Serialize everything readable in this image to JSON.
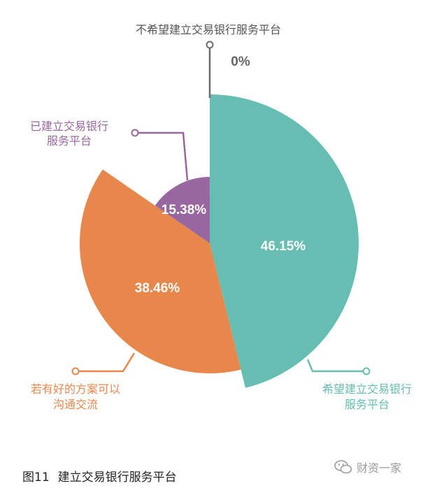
{
  "chart_data": {
    "type": "pie",
    "slices": [
      {
        "label": "希望建立交易银行服务平台",
        "value": 46.15,
        "value_label": "46.15%",
        "color": "#66bdb1"
      },
      {
        "label": "若有好的方案可以沟通交流",
        "value": 38.46,
        "value_label": "38.46%",
        "color": "#e8874b"
      },
      {
        "label": "已建立交易银行服务平台",
        "value": 15.38,
        "value_label": "15.38%",
        "color": "#99679f"
      },
      {
        "label": "不希望建立交易银行服务平台",
        "value": 0,
        "value_label": "0%",
        "color": "#6b6b6b"
      }
    ]
  },
  "callouts": {
    "teal": [
      "希望建立交易银行",
      "服务平台"
    ],
    "orange": [
      "若有好的方案可以",
      "沟通交流"
    ],
    "purple": [
      "已建立交易银行",
      "服务平台"
    ],
    "gray": [
      "不希望建立交易银行服务平台"
    ]
  },
  "caption": {
    "figure": "图11",
    "title": "建立交易银行服务平台"
  },
  "watermark": {
    "text": "财资一家",
    "icon": "wechat-icon"
  }
}
